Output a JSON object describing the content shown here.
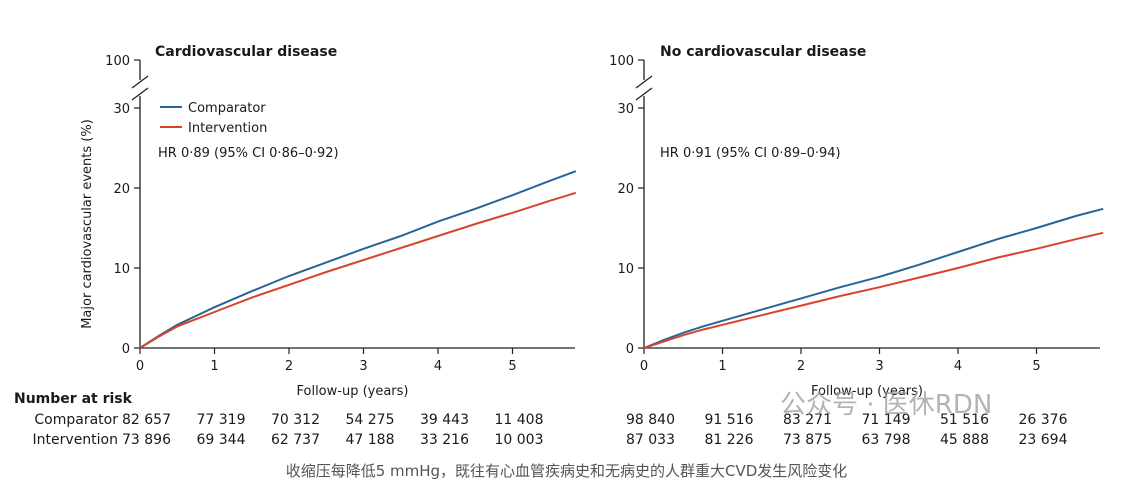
{
  "chart_data": [
    {
      "type": "line",
      "title": "Cardiovascular disease",
      "xlabel": "Follow-up (years)",
      "ylabel": "Major cardiovascular events (%)",
      "xlim": [
        0,
        5.85
      ],
      "ylim": [
        0,
        30
      ],
      "y_break_top": 100,
      "xticks": [
        "0",
        "1",
        "2",
        "3",
        "4",
        "5"
      ],
      "yticks": [
        "0",
        "10",
        "20",
        "30"
      ],
      "legend": "top-left",
      "annotation": "HR 0·89 (95% CI 0·86–0·92)",
      "series": [
        {
          "name": "Comparator",
          "color": "#2a6496",
          "x": [
            0,
            0.25,
            0.5,
            0.75,
            1,
            1.5,
            2,
            2.5,
            3,
            3.5,
            4,
            4.5,
            5,
            5.5,
            5.85
          ],
          "y": [
            0,
            1.5,
            2.9,
            4.0,
            5.1,
            7.1,
            9.0,
            10.7,
            12.4,
            14.0,
            15.8,
            17.4,
            19.1,
            20.9,
            22.1
          ]
        },
        {
          "name": "Intervention",
          "color": "#d9432c",
          "x": [
            0,
            0.25,
            0.5,
            0.75,
            1,
            1.5,
            2,
            2.5,
            3,
            3.5,
            4,
            4.5,
            5,
            5.5,
            5.85
          ],
          "y": [
            0,
            1.4,
            2.7,
            3.6,
            4.5,
            6.3,
            7.9,
            9.5,
            11.0,
            12.5,
            14.0,
            15.5,
            16.9,
            18.4,
            19.4
          ]
        }
      ],
      "risk_table": {
        "header": "Number at risk",
        "rows": [
          {
            "name": "Comparator",
            "values": [
              "82 657",
              "77 319",
              "70 312",
              "54 275",
              "39 443",
              "11 408"
            ]
          },
          {
            "name": "Intervention",
            "values": [
              "73 896",
              "69 344",
              "62 737",
              "47 188",
              "33 216",
              "10 003"
            ]
          }
        ]
      }
    },
    {
      "type": "line",
      "title": "No cardiovascular disease",
      "xlabel": "Follow-up (years)",
      "ylabel": "",
      "xlim": [
        0,
        5.85
      ],
      "ylim": [
        0,
        30
      ],
      "y_break_top": 100,
      "xticks": [
        "0",
        "1",
        "2",
        "3",
        "4",
        "5"
      ],
      "yticks": [
        "0",
        "10",
        "20",
        "30"
      ],
      "annotation": "HR 0·91 (95% CI 0·89–0·94)",
      "series": [
        {
          "name": "Comparator",
          "color": "#2a6496",
          "x": [
            0,
            0.25,
            0.5,
            0.75,
            1,
            1.5,
            2,
            2.5,
            3,
            3.5,
            4,
            4.5,
            5,
            5.5,
            5.85
          ],
          "y": [
            0,
            1.0,
            1.9,
            2.7,
            3.4,
            4.8,
            6.2,
            7.6,
            8.9,
            10.4,
            12.0,
            13.6,
            15.0,
            16.5,
            17.4
          ]
        },
        {
          "name": "Intervention",
          "color": "#d9432c",
          "x": [
            0,
            0.25,
            0.5,
            0.75,
            1,
            1.5,
            2,
            2.5,
            3,
            3.5,
            4,
            4.5,
            5,
            5.5,
            5.85
          ],
          "y": [
            0,
            0.8,
            1.6,
            2.3,
            2.9,
            4.1,
            5.3,
            6.5,
            7.6,
            8.8,
            10.0,
            11.3,
            12.4,
            13.6,
            14.4
          ]
        }
      ],
      "risk_table": {
        "rows": [
          {
            "name": "Comparator",
            "values": [
              "98 840",
              "91 516",
              "83 271",
              "71 149",
              "51 516",
              "26 376"
            ]
          },
          {
            "name": "Intervention",
            "values": [
              "87 033",
              "81 226",
              "73 875",
              "63 798",
              "45 888",
              "23 694"
            ]
          }
        ]
      }
    }
  ],
  "caption": "收缩压每降低5 mmHg，既往有心血管疾病史和无病史的人群重大CVD发生风险变化",
  "watermark": "公众号 · 医休RDN"
}
